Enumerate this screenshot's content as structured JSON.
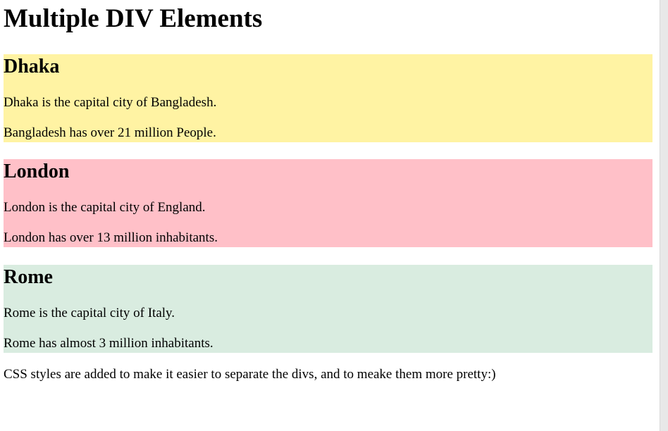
{
  "page": {
    "title": "Multiple DIV Elements",
    "note": "CSS styles are added to make it easier to separate the divs, and to meake them more pretty:)"
  },
  "cities": [
    {
      "name": "Dhaka",
      "line1": "Dhaka is the capital city of Bangladesh.",
      "line2": "Bangladesh has over 21 million People.",
      "color": "#fff3a3"
    },
    {
      "name": "London",
      "line1": "London is the capital city of England.",
      "line2": "London has over 13 million inhabitants.",
      "color": "#ffc0c8"
    },
    {
      "name": "Rome",
      "line1": "Rome is the capital city of Italy.",
      "line2": "Rome has almost 3 million inhabitants.",
      "color": "#d9ece0"
    }
  ]
}
